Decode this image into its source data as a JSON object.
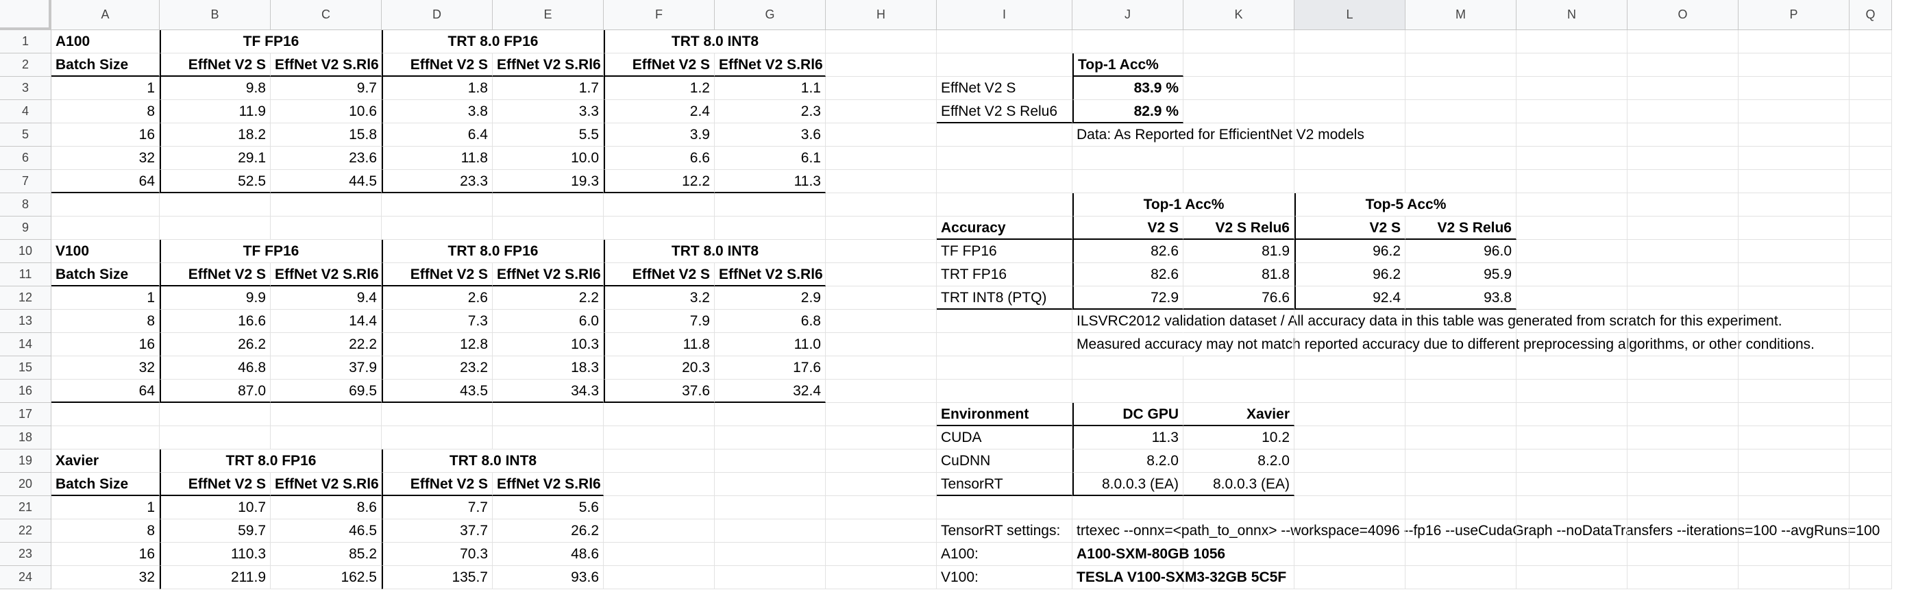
{
  "columns": [
    "A",
    "B",
    "C",
    "D",
    "E",
    "F",
    "G",
    "H",
    "I",
    "J",
    "K",
    "L",
    "M",
    "N",
    "O",
    "P",
    "Q"
  ],
  "selected_column": "L",
  "rows": [
    "1",
    "2",
    "3",
    "4",
    "5",
    "6",
    "7",
    "8",
    "9",
    "10",
    "11",
    "12",
    "13",
    "14",
    "15",
    "16",
    "17",
    "18",
    "19",
    "20",
    "21",
    "22",
    "23",
    "24"
  ],
  "cells": {
    "A1": "A100",
    "B1": "TF FP16",
    "D1": "TRT 8.0 FP16",
    "F1": "TRT 8.0 INT8",
    "A2": "Batch Size",
    "B2": "EffNet V2 S",
    "C2": "EffNet V2 S.Rl6",
    "D2": "EffNet V2 S",
    "E2": "EffNet V2 S.Rl6",
    "F2": "EffNet V2 S",
    "G2": "EffNet V2 S.Rl6",
    "A3": "1",
    "B3": "9.8",
    "C3": "9.7",
    "D3": "1.8",
    "E3": "1.7",
    "F3": "1.2",
    "G3": "1.1",
    "A4": "8",
    "B4": "11.9",
    "C4": "10.6",
    "D4": "3.8",
    "E4": "3.3",
    "F4": "2.4",
    "G4": "2.3",
    "A5": "16",
    "B5": "18.2",
    "C5": "15.8",
    "D5": "6.4",
    "E5": "5.5",
    "F5": "3.9",
    "G5": "3.6",
    "A6": "32",
    "B6": "29.1",
    "C6": "23.6",
    "D6": "11.8",
    "E6": "10.0",
    "F6": "6.6",
    "G6": "6.1",
    "A7": "64",
    "B7": "52.5",
    "C7": "44.5",
    "D7": "23.3",
    "E7": "19.3",
    "F7": "12.2",
    "G7": "11.3",
    "A10": "V100",
    "B10": "TF FP16",
    "D10": "TRT 8.0 FP16",
    "F10": "TRT 8.0 INT8",
    "A11": "Batch Size",
    "B11": "EffNet V2 S",
    "C11": "EffNet V2 S.Rl6",
    "D11": "EffNet V2 S",
    "E11": "EffNet V2 S.Rl6",
    "F11": "EffNet V2 S",
    "G11": "EffNet V2 S.Rl6",
    "A12": "1",
    "B12": "9.9",
    "C12": "9.4",
    "D12": "2.6",
    "E12": "2.2",
    "F12": "3.2",
    "G12": "2.9",
    "A13": "8",
    "B13": "16.6",
    "C13": "14.4",
    "D13": "7.3",
    "E13": "6.0",
    "F13": "7.9",
    "G13": "6.8",
    "A14": "16",
    "B14": "26.2",
    "C14": "22.2",
    "D14": "12.8",
    "E14": "10.3",
    "F14": "11.8",
    "G14": "11.0",
    "A15": "32",
    "B15": "46.8",
    "C15": "37.9",
    "D15": "23.2",
    "E15": "18.3",
    "F15": "20.3",
    "G15": "17.6",
    "A16": "64",
    "B16": "87.0",
    "C16": "69.5",
    "D16": "43.5",
    "E16": "34.3",
    "F16": "37.6",
    "G16": "32.4",
    "A19": "Xavier",
    "B19": "TRT 8.0 FP16",
    "D19": "TRT 8.0 INT8",
    "A20": "Batch Size",
    "B20": "EffNet V2 S",
    "C20": "EffNet V2 S.Rl6",
    "D20": "EffNet V2 S",
    "E20": "EffNet V2 S.Rl6",
    "A21": "1",
    "B21": "10.7",
    "C21": "8.6",
    "D21": "7.7",
    "E21": "5.6",
    "A22": "8",
    "B22": "59.7",
    "C22": "46.5",
    "D22": "37.7",
    "E22": "26.2",
    "A23": "16",
    "B23": "110.3",
    "C23": "85.2",
    "D23": "70.3",
    "E23": "48.6",
    "A24": "32",
    "B24": "211.9",
    "C24": "162.5",
    "D24": "135.7",
    "E24": "93.6",
    "J2": "Top-1 Acc%",
    "I3": "EffNet V2 S",
    "J3": "83.9 %",
    "I4": "EffNet V2 S Relu6",
    "J4": "82.9 %",
    "J5": "Data: As Reported for EfficientNet V2 models",
    "J8": "Top-1 Acc%",
    "L8": "Top-5 Acc%",
    "I9": "Accuracy",
    "J9": "V2 S",
    "K9": "V2 S Relu6",
    "L9": "V2 S",
    "M9": "V2 S Relu6",
    "I10": "TF FP16",
    "J10": "82.6",
    "K10": "81.9",
    "L10": "96.2",
    "M10": "96.0",
    "I11": "TRT FP16",
    "J11": "82.6",
    "K11": "81.8",
    "L11": "96.2",
    "M11": "95.9",
    "I12": "TRT INT8 (PTQ)",
    "J12": "72.9",
    "K12": "76.6",
    "L12": "92.4",
    "M12": "93.8",
    "J13": "ILSVRC2012 validation dataset   /   All accuracy data in this table was generated from scratch for this experiment.",
    "J14": "Measured accuracy may not match reported accuracy due to different preprocessing algorithms, or other conditions.",
    "I17": "Environment",
    "J17": "DC GPU",
    "K17": "Xavier",
    "I18": "CUDA",
    "J18": "11.3",
    "K18": "10.2",
    "I19": "CuDNN",
    "J19": "8.2.0",
    "K19": "8.2.0",
    "I20": "TensorRT",
    "J20": "8.0.0.3 (EA)",
    "K20": "8.0.0.3 (EA)",
    "I22": "TensorRT settings:",
    "J22": "trtexec --onnx=<path_to_onnx> --workspace=4096 --fp16 --useCudaGraph --noDataTransfers --iterations=100 --avgRuns=100",
    "I23": "A100:",
    "J23": "A100-SXM-80GB 1056",
    "I24": "V100:",
    "J24": "TESLA V100-SXM3-32GB 5C5F"
  }
}
